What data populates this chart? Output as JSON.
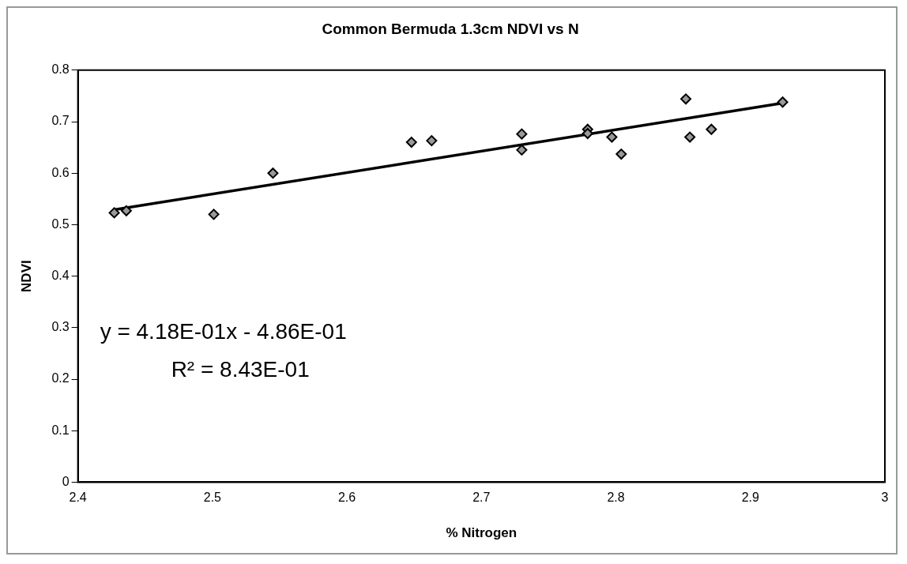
{
  "chart_data": {
    "type": "scatter",
    "title": "Common Bermuda 1.3cm NDVI vs N",
    "xlabel": "% Nitrogen",
    "ylabel": "NDVI",
    "xlim": [
      2.4,
      3
    ],
    "xticks": [
      2.4,
      2.5,
      2.6,
      2.7,
      2.8,
      2.9,
      3
    ],
    "ylim": [
      0,
      0.8
    ],
    "yticks": [
      0,
      0.1,
      0.2,
      0.3,
      0.4,
      0.5,
      0.6,
      0.7,
      0.8
    ],
    "grid": false,
    "legend": false,
    "marker": "diamond",
    "series": [
      {
        "type": "scatter",
        "color": "#999999",
        "x": [
          2.427,
          2.436,
          2.501,
          2.545,
          2.648,
          2.663,
          2.73,
          2.73,
          2.779,
          2.779,
          2.797,
          2.804,
          2.852,
          2.855,
          2.871,
          2.924
        ],
        "values": [
          0.523,
          0.527,
          0.52,
          0.6,
          0.66,
          0.663,
          0.676,
          0.645,
          0.685,
          0.677,
          0.67,
          0.637,
          0.744,
          0.67,
          0.685,
          0.738
        ]
      },
      {
        "type": "line",
        "color": "#000000",
        "marker": "none",
        "line_style": "solid",
        "x": [
          2.427,
          2.924
        ],
        "values": [
          0.529,
          0.736
        ]
      }
    ],
    "annotations": [
      "y = 4.18E-01x - 4.86E-01",
      "R² = 8.43E-01"
    ]
  }
}
